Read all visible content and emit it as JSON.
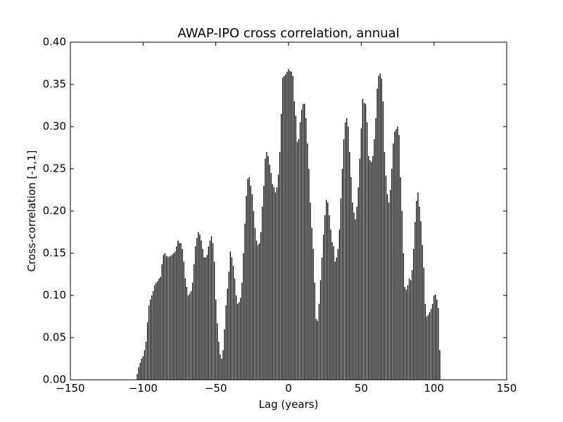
{
  "chart_data": {
    "type": "vlines",
    "title": "AWAP-IPO cross correlation, annual",
    "xlabel": "Lag (years)",
    "ylabel": "Cross-correlation [-1,1]",
    "color": "#000000",
    "x": [
      -104,
      -103,
      -102,
      -101,
      -100,
      -99,
      -98,
      -97,
      -96,
      -95,
      -94,
      -93,
      -92,
      -91,
      -90,
      -89,
      -88,
      -87,
      -86,
      -85,
      -84,
      -83,
      -82,
      -81,
      -80,
      -79,
      -78,
      -77,
      -76,
      -75,
      -74,
      -73,
      -72,
      -71,
      -70,
      -69,
      -68,
      -67,
      -66,
      -65,
      -64,
      -63,
      -62,
      -61,
      -60,
      -59,
      -58,
      -57,
      -56,
      -55,
      -54,
      -53,
      -52,
      -51,
      -50,
      -49,
      -48,
      -47,
      -46,
      -45,
      -44,
      -43,
      -42,
      -41,
      -40,
      -39,
      -38,
      -37,
      -36,
      -35,
      -34,
      -33,
      -32,
      -31,
      -30,
      -29,
      -28,
      -27,
      -26,
      -25,
      -24,
      -23,
      -22,
      -21,
      -20,
      -19,
      -18,
      -17,
      -16,
      -15,
      -14,
      -13,
      -12,
      -11,
      -10,
      -9,
      -8,
      -7,
      -6,
      -5,
      -4,
      -3,
      -2,
      -1,
      0,
      1,
      2,
      3,
      4,
      5,
      6,
      7,
      8,
      9,
      10,
      11,
      12,
      13,
      14,
      15,
      16,
      17,
      18,
      19,
      20,
      21,
      22,
      23,
      24,
      25,
      26,
      27,
      28,
      29,
      30,
      31,
      32,
      33,
      34,
      35,
      36,
      37,
      38,
      39,
      40,
      41,
      42,
      43,
      44,
      45,
      46,
      47,
      48,
      49,
      50,
      51,
      52,
      53,
      54,
      55,
      56,
      57,
      58,
      59,
      60,
      61,
      62,
      63,
      64,
      65,
      66,
      67,
      68,
      69,
      70,
      71,
      72,
      73,
      74,
      75,
      76,
      77,
      78,
      79,
      80,
      81,
      82,
      83,
      84,
      85,
      86,
      87,
      88,
      89,
      90,
      91,
      92,
      93,
      94,
      95,
      96,
      97,
      98,
      99,
      100,
      101,
      102,
      103,
      104
    ],
    "values": [
      0.007,
      0.015,
      0.02,
      0.025,
      0.028,
      0.035,
      0.045,
      0.068,
      0.088,
      0.095,
      0.1,
      0.105,
      0.112,
      0.115,
      0.117,
      0.12,
      0.122,
      0.137,
      0.148,
      0.15,
      0.147,
      0.146,
      0.146,
      0.147,
      0.148,
      0.15,
      0.152,
      0.158,
      0.165,
      0.162,
      0.162,
      0.155,
      0.14,
      0.12,
      0.11,
      0.1,
      0.102,
      0.105,
      0.115,
      0.137,
      0.158,
      0.168,
      0.175,
      0.172,
      0.165,
      0.155,
      0.145,
      0.145,
      0.148,
      0.158,
      0.165,
      0.17,
      0.162,
      0.14,
      0.095,
      0.067,
      0.045,
      0.03,
      0.025,
      0.035,
      0.06,
      0.088,
      0.108,
      0.128,
      0.152,
      0.145,
      0.135,
      0.12,
      0.1,
      0.09,
      0.092,
      0.097,
      0.115,
      0.15,
      0.185,
      0.218,
      0.238,
      0.24,
      0.23,
      0.22,
      0.2,
      0.18,
      0.165,
      0.16,
      0.162,
      0.175,
      0.205,
      0.23,
      0.262,
      0.27,
      0.265,
      0.255,
      0.245,
      0.232,
      0.228,
      0.222,
      0.228,
      0.243,
      0.27,
      0.315,
      0.358,
      0.36,
      0.362,
      0.365,
      0.368,
      0.366,
      0.365,
      0.36,
      0.33,
      0.313,
      0.282,
      0.285,
      0.305,
      0.32,
      0.327,
      0.327,
      0.31,
      0.28,
      0.25,
      0.21,
      0.18,
      0.155,
      0.115,
      0.072,
      0.07,
      0.09,
      0.118,
      0.145,
      0.172,
      0.195,
      0.213,
      0.21,
      0.195,
      0.178,
      0.163,
      0.158,
      0.14,
      0.145,
      0.155,
      0.178,
      0.215,
      0.25,
      0.285,
      0.305,
      0.31,
      0.3,
      0.27,
      0.24,
      0.21,
      0.198,
      0.19,
      0.205,
      0.228,
      0.262,
      0.298,
      0.333,
      0.328,
      0.327,
      0.305,
      0.265,
      0.26,
      0.258,
      0.265,
      0.285,
      0.31,
      0.345,
      0.36,
      0.363,
      0.357,
      0.33,
      0.27,
      0.242,
      0.22,
      0.21,
      0.225,
      0.25,
      0.28,
      0.294,
      0.297,
      0.3,
      0.29,
      0.24,
      0.2,
      0.15,
      0.11,
      0.107,
      0.112,
      0.12,
      0.118,
      0.13,
      0.155,
      0.187,
      0.212,
      0.222,
      0.205,
      0.188,
      0.16,
      0.133,
      0.09,
      0.075,
      0.077,
      0.08,
      0.084,
      0.09,
      0.1,
      0.101,
      0.095,
      0.085,
      0.035
    ],
    "xlim": [
      -150,
      150
    ],
    "ylim": [
      0,
      0.4
    ],
    "xticks": [
      {
        "value": -150,
        "label": "−150"
      },
      {
        "value": -100,
        "label": "−100"
      },
      {
        "value": -50,
        "label": "−50"
      },
      0,
      50,
      100,
      150
    ],
    "yticks": [
      {
        "value": 0,
        "label": "0.00"
      },
      {
        "value": 0.05,
        "label": "0.05"
      },
      {
        "value": 0.1,
        "label": "0.10"
      },
      {
        "value": 0.15,
        "label": "0.15"
      },
      {
        "value": 0.2,
        "label": "0.20"
      },
      {
        "value": 0.25,
        "label": "0.25"
      },
      {
        "value": 0.3,
        "label": "0.30"
      },
      {
        "value": 0.35,
        "label": "0.35"
      },
      {
        "value": 0.4,
        "label": "0.40"
      }
    ]
  }
}
